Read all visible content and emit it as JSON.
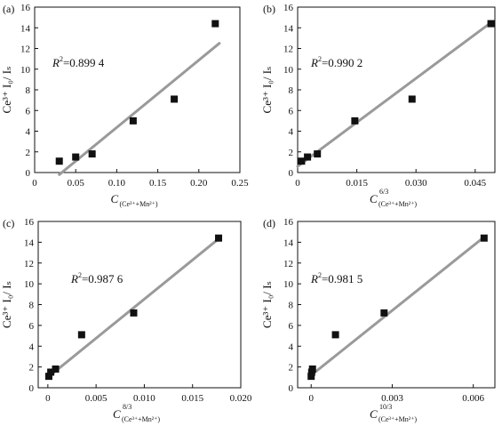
{
  "chart_data": [
    {
      "type": "scatter",
      "panel_label": "(a)",
      "r2_prefix": "R",
      "r2_sup": "2",
      "r2_value": "=0.899 4",
      "xlabel_main": "C",
      "xlabel_exp": "",
      "xlabel_sub": "(Ce³⁺+Mn²⁺)",
      "ylabel": "Ce³⁺ I₀/ Iₛ",
      "xlim": [
        0,
        0.25
      ],
      "ylim": [
        0,
        16
      ],
      "xticks": [
        0,
        0.05,
        0.1,
        0.15,
        0.2,
        0.25
      ],
      "xtick_labels": [
        "0",
        "0.05",
        "0.10",
        "0.15",
        "0.20",
        "0.25"
      ],
      "yticks": [
        0,
        2,
        4,
        6,
        8,
        10,
        12,
        14,
        16
      ],
      "ytick_labels": [
        "0",
        "2",
        "4",
        "6",
        "8",
        "10",
        "12",
        "14",
        "16"
      ],
      "points": [
        {
          "x": 0.03,
          "y": 1.1
        },
        {
          "x": 0.05,
          "y": 1.5
        },
        {
          "x": 0.07,
          "y": 1.8
        },
        {
          "x": 0.12,
          "y": 5.0
        },
        {
          "x": 0.17,
          "y": 7.1
        },
        {
          "x": 0.22,
          "y": 14.4
        }
      ],
      "fit_line": {
        "x": [
          0.03,
          0.225
        ],
        "y": [
          -0.2,
          12.5
        ]
      }
    },
    {
      "type": "scatter",
      "panel_label": "(b)",
      "r2_prefix": "R",
      "r2_sup": "2",
      "r2_value": "=0.990 2",
      "xlabel_main": "C",
      "xlabel_exp": "6/3",
      "xlabel_sub": "(Ce³⁺+Mn²⁺)",
      "ylabel": "Ce³⁺ I₀/ Iₛ",
      "xlim": [
        0,
        0.05
      ],
      "ylim": [
        0,
        16
      ],
      "xticks": [
        0,
        0.015,
        0.03,
        0.045
      ],
      "xtick_labels": [
        "0",
        "0.015",
        "0.030",
        "0.045"
      ],
      "yticks": [
        0,
        2,
        4,
        6,
        8,
        10,
        12,
        14,
        16
      ],
      "ytick_labels": [
        "0",
        "2",
        "4",
        "6",
        "8",
        "10",
        "12",
        "14",
        "16"
      ],
      "points": [
        {
          "x": 0.001,
          "y": 1.1
        },
        {
          "x": 0.0025,
          "y": 1.5
        },
        {
          "x": 0.005,
          "y": 1.8
        },
        {
          "x": 0.0145,
          "y": 5.0
        },
        {
          "x": 0.029,
          "y": 7.1
        },
        {
          "x": 0.049,
          "y": 14.4
        }
      ],
      "fit_line": {
        "x": [
          0.0,
          0.049
        ],
        "y": [
          0.6,
          14.5
        ]
      }
    },
    {
      "type": "scatter",
      "panel_label": "(c)",
      "r2_prefix": "R",
      "r2_sup": "2",
      "r2_value": "=0.987 6",
      "xlabel_main": "C",
      "xlabel_exp": "8/3",
      "xlabel_sub": "(Ce³⁺+Mn²⁺)",
      "ylabel": "Ce³⁺ I₀/ Iₛ",
      "xlim": [
        -0.001,
        0.02
      ],
      "ylim": [
        0,
        16
      ],
      "xticks": [
        0,
        0.005,
        0.01,
        0.015,
        0.02
      ],
      "xtick_labels": [
        "0",
        "0.005",
        "0.010",
        "0.015",
        "0.020"
      ],
      "yticks": [
        0,
        2,
        4,
        6,
        8,
        10,
        12,
        14,
        16
      ],
      "ytick_labels": [
        "0",
        "2",
        "4",
        "6",
        "8",
        "10",
        "12",
        "14",
        "16"
      ],
      "points": [
        {
          "x": 0.0001,
          "y": 1.1
        },
        {
          "x": 0.0003,
          "y": 1.5
        },
        {
          "x": 0.0008,
          "y": 1.8
        },
        {
          "x": 0.0035,
          "y": 5.1
        },
        {
          "x": 0.0089,
          "y": 7.2
        },
        {
          "x": 0.0177,
          "y": 14.4
        }
      ],
      "fit_line": {
        "x": [
          0.0,
          0.0178
        ],
        "y": [
          1.0,
          14.4
        ]
      }
    },
    {
      "type": "scatter",
      "panel_label": "(d)",
      "r2_prefix": "R",
      "r2_sup": "2",
      "r2_value": "=0.981 5",
      "xlabel_main": "C",
      "xlabel_exp": "10/3",
      "xlabel_sub": "(Ce³⁺+Mn²⁺)",
      "ylabel": "Ce³⁺ I₀/ Iₛ",
      "xlim": [
        -0.0005,
        0.0068
      ],
      "ylim": [
        0,
        16
      ],
      "xticks": [
        0,
        0.003,
        0.006
      ],
      "xtick_labels": [
        "0",
        "0.003",
        "0.006"
      ],
      "yticks": [
        0,
        2,
        4,
        6,
        8,
        10,
        12,
        14,
        16
      ],
      "ytick_labels": [
        "0",
        "2",
        "4",
        "6",
        "8",
        "10",
        "12",
        "14",
        "16"
      ],
      "points": [
        {
          "x": 0.0,
          "y": 1.1
        },
        {
          "x": 2e-05,
          "y": 1.5
        },
        {
          "x": 5e-05,
          "y": 1.8
        },
        {
          "x": 0.0009,
          "y": 5.1
        },
        {
          "x": 0.0027,
          "y": 7.2
        },
        {
          "x": 0.0064,
          "y": 14.4
        }
      ],
      "fit_line": {
        "x": [
          0.0,
          0.0064
        ],
        "y": [
          1.2,
          14.5
        ]
      }
    }
  ]
}
